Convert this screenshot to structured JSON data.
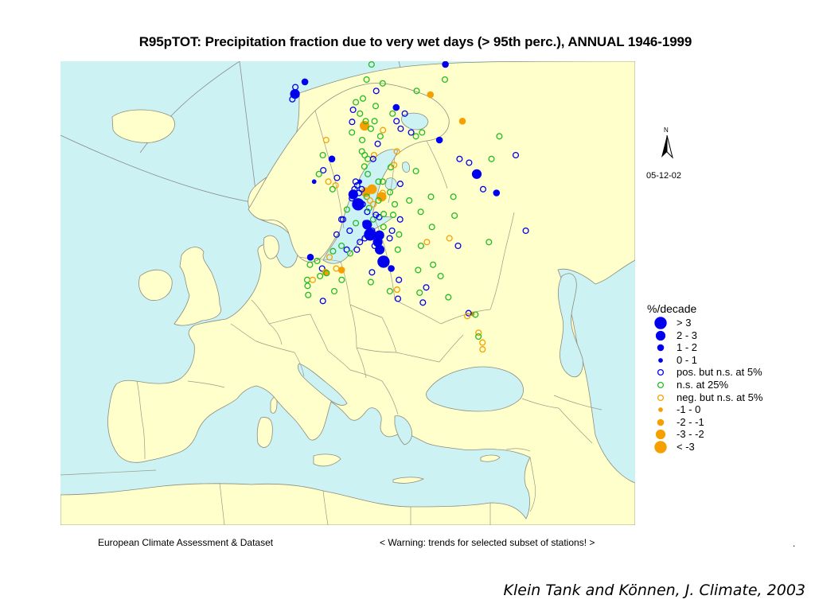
{
  "title": "R95pTOT: Precipitation fraction due to very wet days (> 95th perc.), ANNUAL 1946-1999",
  "north_label": "N",
  "date": "05-12-02",
  "legend": {
    "title": "%/decade",
    "items": [
      {
        "label": "> 3",
        "kind": "pos",
        "size": 4
      },
      {
        "label": "2 - 3",
        "kind": "pos",
        "size": 3
      },
      {
        "label": "1 - 2",
        "kind": "pos",
        "size": 2
      },
      {
        "label": "0 - 1",
        "kind": "pos",
        "size": 1
      },
      {
        "label": "pos. but n.s. at 5%",
        "kind": "pos-ns",
        "size": 0
      },
      {
        "label": "n.s. at 25%",
        "kind": "ns25",
        "size": 0
      },
      {
        "label": "neg. but n.s. at 5%",
        "kind": "neg-ns",
        "size": 0
      },
      {
        "label": "-1 - 0",
        "kind": "neg",
        "size": 1
      },
      {
        "label": "-2 - -1",
        "kind": "neg",
        "size": 2
      },
      {
        "label": "-3 - -2",
        "kind": "neg",
        "size": 3
      },
      {
        "label": "< -3",
        "kind": "neg",
        "size": 4
      }
    ]
  },
  "colors": {
    "sea": "#ccf2f4",
    "land": "#ffffcc",
    "border": "#8c8c7c",
    "positive": "#0000ee",
    "ns25": "#22bb22",
    "negative": "#f5a000"
  },
  "stations": [
    {
      "lon": -21.9,
      "lat": 64.1,
      "kind": "pos",
      "size": 3
    },
    {
      "lon": -18.1,
      "lat": 65.7,
      "kind": "pos",
      "size": 2
    },
    {
      "lon": -22.6,
      "lat": 63.4,
      "kind": "pos-ns",
      "size": 0
    },
    {
      "lon": -22.4,
      "lat": 65.0,
      "kind": "pos-ns",
      "size": 0
    },
    {
      "lon": 60.0,
      "lat": 68.0,
      "kind": "pos",
      "size": 2
    },
    {
      "lon": 55.0,
      "lat": 66.0,
      "kind": "ns25",
      "size": 0
    },
    {
      "lon": 44.0,
      "lat": 64.0,
      "kind": "neg",
      "size": 2
    },
    {
      "lon": 53.0,
      "lat": 60.5,
      "kind": "neg",
      "size": 2
    },
    {
      "lon": 38.0,
      "lat": 64.5,
      "kind": "ns25",
      "size": 0
    },
    {
      "lon": 65.0,
      "lat": 58.5,
      "kind": "ns25",
      "size": 0
    },
    {
      "lon": 67.0,
      "lat": 56.0,
      "kind": "pos-ns",
      "size": 0
    },
    {
      "lon": 25.8,
      "lat": 62.3,
      "kind": "pos",
      "size": 2
    },
    {
      "lon": 40.0,
      "lat": 58.0,
      "kind": "pos",
      "size": 2
    },
    {
      "lon": 34.0,
      "lat": 59.0,
      "kind": "ns25",
      "size": 0
    },
    {
      "lon": 31.0,
      "lat": 58.5,
      "kind": "ns25",
      "size": 0
    },
    {
      "lon": 29.0,
      "lat": 61.5,
      "kind": "pos-ns",
      "size": 0
    },
    {
      "lon": 29.5,
      "lat": 59.0,
      "kind": "pos-ns",
      "size": 0
    },
    {
      "lon": 25.5,
      "lat": 59.5,
      "kind": "pos-ns",
      "size": 0
    },
    {
      "lon": 49.0,
      "lat": 53.5,
      "kind": "pos",
      "size": 3
    },
    {
      "lon": 53.0,
      "lat": 51.0,
      "kind": "pos",
      "size": 2
    },
    {
      "lon": 45.0,
      "lat": 55.5,
      "kind": "pos-ns",
      "size": 0
    },
    {
      "lon": 48.0,
      "lat": 55.0,
      "kind": "pos-ns",
      "size": 0
    },
    {
      "lon": 49.0,
      "lat": 51.5,
      "kind": "pos-ns",
      "size": 0
    },
    {
      "lon": 57.0,
      "lat": 55.5,
      "kind": "ns25",
      "size": 0
    },
    {
      "lon": 57.0,
      "lat": 46.0,
      "kind": "pos-ns",
      "size": 0
    },
    {
      "lon": 38.0,
      "lat": 50.5,
      "kind": "ns25",
      "size": 0
    },
    {
      "lon": 36.5,
      "lat": 48.0,
      "kind": "ns25",
      "size": 0
    },
    {
      "lon": 44.5,
      "lat": 44.5,
      "kind": "ns25",
      "size": 0
    },
    {
      "lon": 33.0,
      "lat": 45.0,
      "kind": "neg-ns",
      "size": 0
    },
    {
      "lon": 35.0,
      "lat": 44.0,
      "kind": "pos-ns",
      "size": 0
    },
    {
      "lon": 34.5,
      "lat": 35.0,
      "kind": "neg",
      "size": 1
    },
    {
      "lon": 33.5,
      "lat": 35.1,
      "kind": "pos-ns",
      "size": 0
    },
    {
      "lon": 33.0,
      "lat": 34.7,
      "kind": "neg-ns",
      "size": 0
    },
    {
      "lon": 35.2,
      "lat": 34.9,
      "kind": "ns25",
      "size": 0
    },
    {
      "lon": 35.0,
      "lat": 32.5,
      "kind": "neg-ns",
      "size": 0
    },
    {
      "lon": 35.5,
      "lat": 31.2,
      "kind": "neg-ns",
      "size": 0
    },
    {
      "lon": 35.2,
      "lat": 30.3,
      "kind": "neg-ns",
      "size": 0
    },
    {
      "lon": 34.8,
      "lat": 32.0,
      "kind": "ns25",
      "size": 0
    },
    {
      "lon": 29.0,
      "lat": 37.2,
      "kind": "ns25",
      "size": 0
    },
    {
      "lon": 28.0,
      "lat": 40.0,
      "kind": "ns25",
      "size": 0
    },
    {
      "lon": 26.5,
      "lat": 41.5,
      "kind": "ns25",
      "size": 0
    },
    {
      "lon": 22.0,
      "lat": 40.8,
      "kind": "ns25",
      "size": 0
    },
    {
      "lon": 23.5,
      "lat": 38.5,
      "kind": "pos-ns",
      "size": 0
    },
    {
      "lon": 22.0,
      "lat": 36.5,
      "kind": "pos-ns",
      "size": 0
    },
    {
      "lon": 21.5,
      "lat": 37.8,
      "kind": "ns25",
      "size": 0
    },
    {
      "lon": 26.0,
      "lat": 44.5,
      "kind": "neg-ns",
      "size": 0
    },
    {
      "lon": 24.0,
      "lat": 44.0,
      "kind": "ns25",
      "size": 0
    },
    {
      "lon": 18.0,
      "lat": 49.5,
      "kind": "ns25",
      "size": 0
    },
    {
      "lon": 21.0,
      "lat": 52.2,
      "kind": "pos-ns",
      "size": 0
    },
    {
      "lon": 17.0,
      "lat": 51.1,
      "kind": "ns25",
      "size": 0
    },
    {
      "lon": 15.0,
      "lat": 52.5,
      "kind": "ns25",
      "size": 0
    },
    {
      "lon": 18.6,
      "lat": 54.4,
      "kind": "ns25",
      "size": 0
    },
    {
      "lon": 20.0,
      "lat": 54.7,
      "kind": "neg-ns",
      "size": 0
    },
    {
      "lon": 22.0,
      "lat": 56.5,
      "kind": "neg-ns",
      "size": 0
    },
    {
      "lon": 23.0,
      "lat": 50.0,
      "kind": "ns25",
      "size": 0
    },
    {
      "lon": 17.0,
      "lat": 48.1,
      "kind": "ns25",
      "size": 0
    },
    {
      "lon": 19.0,
      "lat": 47.5,
      "kind": "pos-ns",
      "size": 0
    },
    {
      "lon": 18.0,
      "lat": 45.5,
      "kind": "ns25",
      "size": 0
    },
    {
      "lon": 15.0,
      "lat": 45.0,
      "kind": "pos-ns",
      "size": 0
    },
    {
      "lon": 16.0,
      "lat": 46.0,
      "kind": "pos-ns",
      "size": 0
    },
    {
      "lon": 17.0,
      "lat": 43.5,
      "kind": "ns25",
      "size": 0
    },
    {
      "lon": 16.3,
      "lat": 39.5,
      "kind": "pos-ns",
      "size": 0
    },
    {
      "lon": 15.5,
      "lat": 38.2,
      "kind": "neg-ns",
      "size": 0
    },
    {
      "lon": 14.5,
      "lat": 41.0,
      "kind": "pos",
      "size": 2
    },
    {
      "lon": 12.5,
      "lat": 41.9,
      "kind": "pos",
      "size": 4
    },
    {
      "lon": 11.7,
      "lat": 43.5,
      "kind": "pos",
      "size": 3
    },
    {
      "lon": 10.3,
      "lat": 44.0,
      "kind": "pos-ns",
      "size": 0
    },
    {
      "lon": 11.3,
      "lat": 44.5,
      "kind": "pos",
      "size": 3
    },
    {
      "lon": 12.0,
      "lat": 45.4,
      "kind": "pos",
      "size": 3
    },
    {
      "lon": 9.2,
      "lat": 45.5,
      "kind": "pos",
      "size": 4
    },
    {
      "lon": 8.5,
      "lat": 46.8,
      "kind": "pos",
      "size": 3
    },
    {
      "lon": 7.5,
      "lat": 45.0,
      "kind": "pos-ns",
      "size": 0
    },
    {
      "lon": 8.0,
      "lat": 47.0,
      "kind": "pos-ns",
      "size": 0
    },
    {
      "lon": 9.9,
      "lat": 46.0,
      "kind": "pos-ns",
      "size": 0
    },
    {
      "lon": 10.5,
      "lat": 47.5,
      "kind": "ns25",
      "size": 0
    },
    {
      "lon": 8.8,
      "lat": 48.5,
      "kind": "pos-ns",
      "size": 0
    },
    {
      "lon": 9.5,
      "lat": 49.0,
      "kind": "ns25",
      "size": 0
    },
    {
      "lon": 11.5,
      "lat": 48.1,
      "kind": "pos-ns",
      "size": 0
    },
    {
      "lon": 12.5,
      "lat": 47.8,
      "kind": "pos-ns",
      "size": 0
    },
    {
      "lon": 13.5,
      "lat": 46.5,
      "kind": "ns25",
      "size": 0
    },
    {
      "lon": 14.0,
      "lat": 48.2,
      "kind": "ns25",
      "size": 0
    },
    {
      "lon": 14.0,
      "lat": 50.5,
      "kind": "neg",
      "size": 3
    },
    {
      "lon": 11.0,
      "lat": 51.5,
      "kind": "neg",
      "size": 3
    },
    {
      "lon": 14.5,
      "lat": 51.0,
      "kind": "neg-ns",
      "size": 0
    },
    {
      "lon": 12.8,
      "lat": 50.0,
      "kind": "ns25",
      "size": 0
    },
    {
      "lon": 13.5,
      "lat": 52.5,
      "kind": "ns25",
      "size": 0
    },
    {
      "lon": 10.0,
      "lat": 53.5,
      "kind": "ns25",
      "size": 0
    },
    {
      "lon": 8.8,
      "lat": 51.1,
      "kind": "neg",
      "size": 3
    },
    {
      "lon": 7.5,
      "lat": 51.5,
      "kind": "pos-ns",
      "size": 0
    },
    {
      "lon": 7.0,
      "lat": 52.5,
      "kind": "pos",
      "size": 1
    },
    {
      "lon": 6.0,
      "lat": 52.0,
      "kind": "pos-ns",
      "size": 0
    },
    {
      "lon": 5.5,
      "lat": 52.5,
      "kind": "pos-ns",
      "size": 0
    },
    {
      "lon": 6.5,
      "lat": 51.0,
      "kind": "pos-ns",
      "size": 0
    },
    {
      "lon": 5.0,
      "lat": 51.5,
      "kind": "pos-ns",
      "size": 0
    },
    {
      "lon": 4.5,
      "lat": 50.8,
      "kind": "pos",
      "size": 3
    },
    {
      "lon": 4.0,
      "lat": 50.3,
      "kind": "pos-ns",
      "size": 0
    },
    {
      "lon": 6.0,
      "lat": 49.5,
      "kind": "pos",
      "size": 4
    },
    {
      "lon": 9.0,
      "lat": 50.5,
      "kind": "ns25",
      "size": 0
    },
    {
      "lon": 7.5,
      "lat": 49.5,
      "kind": "pos-ns",
      "size": 0
    },
    {
      "lon": 10.0,
      "lat": 50.0,
      "kind": "neg-ns",
      "size": 0
    },
    {
      "lon": 11.0,
      "lat": 49.5,
      "kind": "neg-ns",
      "size": 0
    },
    {
      "lon": 2.3,
      "lat": 48.8,
      "kind": "ns25",
      "size": 0
    },
    {
      "lon": 0.5,
      "lat": 47.5,
      "kind": "pos-ns",
      "size": 0
    },
    {
      "lon": 1.0,
      "lat": 47.5,
      "kind": "pos-ns",
      "size": 0
    },
    {
      "lon": 3.0,
      "lat": 46.0,
      "kind": "pos-ns",
      "size": 0
    },
    {
      "lon": 5.0,
      "lat": 47.0,
      "kind": "ns25",
      "size": 0
    },
    {
      "lon": -1.0,
      "lat": 45.5,
      "kind": "pos-ns",
      "size": 0
    },
    {
      "lon": 0.5,
      "lat": 44.0,
      "kind": "ns25",
      "size": 0
    },
    {
      "lon": 2.0,
      "lat": 43.5,
      "kind": "pos-ns",
      "size": 0
    },
    {
      "lon": 3.0,
      "lat": 43.0,
      "kind": "ns25",
      "size": 0
    },
    {
      "lon": 5.0,
      "lat": 43.5,
      "kind": "pos-ns",
      "size": 0
    },
    {
      "lon": 6.0,
      "lat": 44.5,
      "kind": "pos-ns",
      "size": 0
    },
    {
      "lon": -2.0,
      "lat": 43.3,
      "kind": "ns25",
      "size": 0
    },
    {
      "lon": -3.0,
      "lat": 42.5,
      "kind": "neg-ns",
      "size": 0
    },
    {
      "lon": -8.5,
      "lat": 42.5,
      "kind": "pos",
      "size": 2
    },
    {
      "lon": -8.5,
      "lat": 41.5,
      "kind": "ns25",
      "size": 0
    },
    {
      "lon": -6.5,
      "lat": 42.0,
      "kind": "ns25",
      "size": 0
    },
    {
      "lon": -5.0,
      "lat": 41.0,
      "kind": "pos-ns",
      "size": 0
    },
    {
      "lon": -4.0,
      "lat": 40.5,
      "kind": "neg",
      "size": 2
    },
    {
      "lon": -3.7,
      "lat": 40.4,
      "kind": "ns25",
      "size": 0
    },
    {
      "lon": -1.0,
      "lat": 41.0,
      "kind": "neg-ns",
      "size": 0
    },
    {
      "lon": 0.5,
      "lat": 40.8,
      "kind": "neg",
      "size": 2
    },
    {
      "lon": 0.5,
      "lat": 39.5,
      "kind": "ns25",
      "size": 0
    },
    {
      "lon": -9.0,
      "lat": 39.5,
      "kind": "ns25",
      "size": 0
    },
    {
      "lon": -7.5,
      "lat": 39.5,
      "kind": "neg-ns",
      "size": 0
    },
    {
      "lon": -8.8,
      "lat": 38.7,
      "kind": "ns25",
      "size": 0
    },
    {
      "lon": -8.5,
      "lat": 37.5,
      "kind": "ns25",
      "size": 0
    },
    {
      "lon": -4.5,
      "lat": 36.7,
      "kind": "pos-ns",
      "size": 0
    },
    {
      "lon": -1.5,
      "lat": 38.0,
      "kind": "ns25",
      "size": 0
    },
    {
      "lon": -3.0,
      "lat": 55.5,
      "kind": "pos",
      "size": 2
    },
    {
      "lon": -1.0,
      "lat": 53.0,
      "kind": "pos-ns",
      "size": 0
    },
    {
      "lon": -1.5,
      "lat": 52.0,
      "kind": "neg-ns",
      "size": 0
    },
    {
      "lon": -2.5,
      "lat": 51.5,
      "kind": "ns25",
      "size": 0
    },
    {
      "lon": -6.0,
      "lat": 54.0,
      "kind": "pos-ns",
      "size": 0
    },
    {
      "lon": -7.5,
      "lat": 53.5,
      "kind": "ns25",
      "size": 0
    },
    {
      "lon": -9.0,
      "lat": 52.5,
      "kind": "pos",
      "size": 1
    },
    {
      "lon": -4.0,
      "lat": 52.5,
      "kind": "neg-ns",
      "size": 0
    },
    {
      "lon": -6.5,
      "lat": 56.0,
      "kind": "ns25",
      "size": 0
    },
    {
      "lon": -5.5,
      "lat": 58.0,
      "kind": "neg-ns",
      "size": 0
    },
    {
      "lon": 5.3,
      "lat": 60.4,
      "kind": "pos-ns",
      "size": 0
    },
    {
      "lon": 5.0,
      "lat": 59.0,
      "kind": "ns25",
      "size": 0
    },
    {
      "lon": 6.0,
      "lat": 62.0,
      "kind": "pos-ns",
      "size": 0
    },
    {
      "lon": 10.5,
      "lat": 59.9,
      "kind": "neg",
      "size": 3
    },
    {
      "lon": 9.0,
      "lat": 61.5,
      "kind": "ns25",
      "size": 0
    },
    {
      "lon": 11.0,
      "lat": 63.5,
      "kind": "ns25",
      "size": 0
    },
    {
      "lon": 13.0,
      "lat": 59.5,
      "kind": "ns25",
      "size": 0
    },
    {
      "lon": 15.0,
      "lat": 60.5,
      "kind": "ns25",
      "size": 0
    },
    {
      "lon": 16.5,
      "lat": 62.5,
      "kind": "ns25",
      "size": 0
    },
    {
      "lon": 14.0,
      "lat": 66.0,
      "kind": "ns25",
      "size": 0
    },
    {
      "lon": 18.0,
      "lat": 68.0,
      "kind": "ns25",
      "size": 0
    },
    {
      "lon": 18.0,
      "lat": 64.5,
      "kind": "pos-ns",
      "size": 0
    },
    {
      "lon": 22.0,
      "lat": 65.5,
      "kind": "ns25",
      "size": 0
    },
    {
      "lon": 16.5,
      "lat": 58.5,
      "kind": "ns25",
      "size": 0
    },
    {
      "lon": 15.0,
      "lat": 57.5,
      "kind": "pos-ns",
      "size": 0
    },
    {
      "lon": 13.0,
      "lat": 56.0,
      "kind": "neg-ns",
      "size": 0
    },
    {
      "lon": 18.0,
      "lat": 59.3,
      "kind": "neg-ns",
      "size": 0
    },
    {
      "lon": 9.5,
      "lat": 56.0,
      "kind": "ns25",
      "size": 0
    },
    {
      "lon": 10.5,
      "lat": 55.5,
      "kind": "ns25",
      "size": 0
    },
    {
      "lon": 12.5,
      "lat": 55.5,
      "kind": "pos-ns",
      "size": 0
    },
    {
      "lon": 8.5,
      "lat": 56.5,
      "kind": "ns25",
      "size": 0
    },
    {
      "lon": 9.0,
      "lat": 58.0,
      "kind": "ns25",
      "size": 0
    },
    {
      "lon": 25.0,
      "lat": 69.5,
      "kind": "ns25",
      "size": 0
    },
    {
      "lon": 20.0,
      "lat": 70.0,
      "kind": "neg-ns",
      "size": 0
    },
    {
      "lon": 28.0,
      "lat": 70.5,
      "kind": "ns25",
      "size": 0
    },
    {
      "lon": 23.5,
      "lat": 61.5,
      "kind": "ns25",
      "size": 0
    },
    {
      "lon": 24.5,
      "lat": 60.5,
      "kind": "pos-ns",
      "size": 0
    },
    {
      "lon": 27.5,
      "lat": 53.9,
      "kind": "ns25",
      "size": 0
    },
    {
      "lon": 30.5,
      "lat": 50.5,
      "kind": "ns25",
      "size": 0
    },
    {
      "lon": 26.0,
      "lat": 48.5,
      "kind": "ns25",
      "size": 0
    },
    {
      "lon": 28.5,
      "lat": 46.5,
      "kind": "ns25",
      "size": 0
    },
    {
      "lon": 11.2,
      "lat": 60.5,
      "kind": "ns25",
      "size": 0
    },
    {
      "lon": 7.5,
      "lat": 63.0,
      "kind": "ns25",
      "size": 0
    },
    {
      "lon": 9.0,
      "lat": 54.5,
      "kind": "ns25",
      "size": 0
    },
    {
      "lon": -5.5,
      "lat": 40.0,
      "kind": "ns25",
      "size": 0
    },
    {
      "lon": 8.5,
      "lat": 39.2,
      "kind": "ns25",
      "size": 0
    },
    {
      "lon": 9.0,
      "lat": 40.5,
      "kind": "pos-ns",
      "size": 0
    },
    {
      "lon": 13.5,
      "lat": 38.0,
      "kind": "ns25",
      "size": 0
    },
    {
      "lon": 15.5,
      "lat": 37.0,
      "kind": "pos-ns",
      "size": 0
    }
  ],
  "footer_left": "European Climate Assessment & Dataset",
  "footer_right": "< Warning: trends for selected subset of stations! >",
  "footer_dot": ".",
  "citation": "Klein Tank and Können, J. Climate, 2003"
}
